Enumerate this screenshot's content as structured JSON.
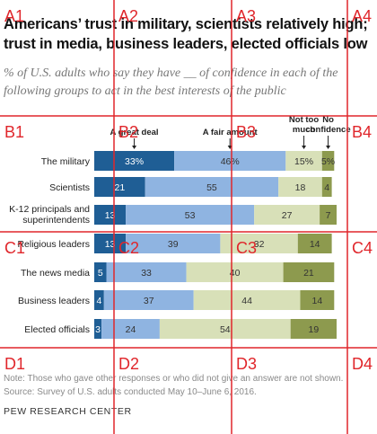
{
  "title": "Americans’ trust in military, scientists relatively high; trust in media, business leaders, elected officials low",
  "subtitle": "% of U.S. adults who say they have __ of confidence in each of the following groups to act in the best interests of the public",
  "note": "Note: Those who gave other responses or who did not give an answer are not shown.",
  "source": "Source: Survey of U.S. adults conducted May 10–June 6, 2016.",
  "brand": "PEW RESEARCH CENTER",
  "grid_overlay": {
    "cells": [
      "A1",
      "A2",
      "A3",
      "A4",
      "B1",
      "B2",
      "B3",
      "B4",
      "C1",
      "C2",
      "C3",
      "C4",
      "D1",
      "D2",
      "D3",
      "D4"
    ],
    "color": "#e0262b"
  },
  "colors": {
    "great_deal": "#1f5e95",
    "fair_amount": "#8fb4e1",
    "not_too_much": "#d8e0b8",
    "no_confidence": "#8d9a4e"
  },
  "chart_data": {
    "type": "bar",
    "orientation": "horizontal",
    "stacked": true,
    "categories": [
      "The military",
      "Scientists",
      "K-12 principals and superintendents",
      "Religious leaders",
      "The news media",
      "Business leaders",
      "Elected officials"
    ],
    "series": [
      {
        "name": "A great deal",
        "values": [
          33,
          21,
          13,
          13,
          5,
          4,
          3
        ]
      },
      {
        "name": "A fair amount",
        "values": [
          46,
          55,
          53,
          39,
          33,
          37,
          24
        ]
      },
      {
        "name": "Not too much",
        "values": [
          15,
          18,
          27,
          32,
          40,
          44,
          54
        ]
      },
      {
        "name": "No confidence at all",
        "values": [
          5,
          4,
          7,
          14,
          21,
          14,
          19
        ]
      }
    ],
    "data_labels_first_row": [
      "33%",
      "46%",
      "15%",
      "5%"
    ],
    "legend_labels": [
      "A great deal",
      "A fair amount",
      "Not too much",
      "No confidence"
    ],
    "xlim": [
      0,
      100
    ],
    "grid": false,
    "legend": "top, labels above first bar"
  }
}
